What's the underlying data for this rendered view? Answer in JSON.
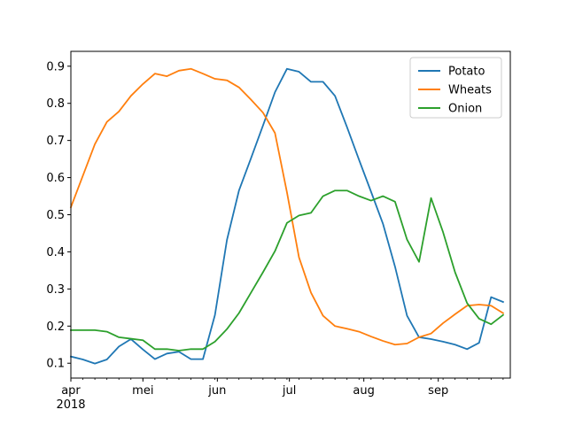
{
  "chart_data": {
    "type": "line",
    "x": [
      "2018-04-01",
      "2018-04-08",
      "2018-04-15",
      "2018-04-22",
      "2018-04-29",
      "2018-05-06",
      "2018-05-13",
      "2018-05-20",
      "2018-05-27",
      "2018-06-03",
      "2018-06-10",
      "2018-06-17",
      "2018-06-24",
      "2018-07-01",
      "2018-07-08",
      "2018-07-15",
      "2018-07-22",
      "2018-07-29",
      "2018-08-05",
      "2018-08-12",
      "2018-08-19",
      "2018-08-26",
      "2018-09-02",
      "2018-09-09",
      "2018-09-16",
      "2018-09-23",
      "2018-09-30"
    ],
    "x_dates": [
      "2018-04-01",
      "2018-04-06",
      "2018-04-11",
      "2018-04-16",
      "2018-04-21",
      "2018-04-26",
      "2018-05-01",
      "2018-05-06",
      "2018-05-11",
      "2018-05-16",
      "2018-05-21",
      "2018-05-26",
      "2018-05-31",
      "2018-06-05",
      "2018-06-10",
      "2018-06-15",
      "2018-06-20",
      "2018-06-25",
      "2018-06-30",
      "2018-07-05",
      "2018-07-10",
      "2018-07-15",
      "2018-07-20",
      "2018-07-25",
      "2018-07-30",
      "2018-08-04",
      "2018-08-09",
      "2018-08-14",
      "2018-08-19",
      "2018-08-24",
      "2018-08-29",
      "2018-09-03",
      "2018-09-08",
      "2018-09-13",
      "2018-09-18",
      "2018-09-23",
      "2018-09-28",
      "2018-10-01"
    ],
    "xlim": [
      "2018-04-01",
      "2018-10-01"
    ],
    "ylim": [
      0.06,
      0.94
    ],
    "yticks": [
      0.1,
      0.2,
      0.3,
      0.4,
      0.5,
      0.6,
      0.7,
      0.8,
      0.9
    ],
    "xtick_labels": [
      {
        "date": "2018-04-01",
        "label": "apr",
        "sublabel": "2018"
      },
      {
        "date": "2018-05-01",
        "label": "mei"
      },
      {
        "date": "2018-06-01",
        "label": "jun"
      },
      {
        "date": "2018-07-01",
        "label": "jul"
      },
      {
        "date": "2018-08-01",
        "label": "aug"
      },
      {
        "date": "2018-09-01",
        "label": "sep"
      }
    ],
    "series": [
      {
        "name": "Potato",
        "color": "#1f77b4",
        "points": [
          [
            "2018-04-01",
            0.118
          ],
          [
            "2018-04-06",
            0.11
          ],
          [
            "2018-04-11",
            0.099
          ],
          [
            "2018-04-16",
            0.11
          ],
          [
            "2018-04-21",
            0.145
          ],
          [
            "2018-04-26",
            0.165
          ],
          [
            "2018-05-01",
            0.137
          ],
          [
            "2018-05-06",
            0.111
          ],
          [
            "2018-05-11",
            0.126
          ],
          [
            "2018-05-16",
            0.131
          ],
          [
            "2018-05-21",
            0.111
          ],
          [
            "2018-05-26",
            0.111
          ],
          [
            "2018-05-31",
            0.23
          ],
          [
            "2018-06-05",
            0.432
          ],
          [
            "2018-06-10",
            0.565
          ],
          [
            "2018-06-15",
            0.652
          ],
          [
            "2018-06-20",
            0.74
          ],
          [
            "2018-06-25",
            0.83
          ],
          [
            "2018-06-30",
            0.893
          ],
          [
            "2018-07-05",
            0.885
          ],
          [
            "2018-07-10",
            0.858
          ],
          [
            "2018-07-15",
            0.858
          ],
          [
            "2018-07-20",
            0.82
          ],
          [
            "2018-07-25",
            0.736
          ],
          [
            "2018-07-30",
            0.648
          ],
          [
            "2018-08-04",
            0.562
          ],
          [
            "2018-08-09",
            0.475
          ],
          [
            "2018-08-14",
            0.36
          ],
          [
            "2018-08-19",
            0.228
          ],
          [
            "2018-08-24",
            0.17
          ],
          [
            "2018-08-29",
            0.165
          ],
          [
            "2018-09-03",
            0.158
          ],
          [
            "2018-09-08",
            0.15
          ],
          [
            "2018-09-13",
            0.138
          ],
          [
            "2018-09-18",
            0.155
          ],
          [
            "2018-09-23",
            0.278
          ],
          [
            "2018-09-28",
            0.265
          ]
        ]
      },
      {
        "name": "Wheats",
        "color": "#ff7f0e",
        "points": [
          [
            "2018-04-01",
            0.52
          ],
          [
            "2018-04-06",
            0.605
          ],
          [
            "2018-04-11",
            0.69
          ],
          [
            "2018-04-16",
            0.75
          ],
          [
            "2018-04-21",
            0.778
          ],
          [
            "2018-04-26",
            0.82
          ],
          [
            "2018-05-01",
            0.852
          ],
          [
            "2018-05-06",
            0.88
          ],
          [
            "2018-05-11",
            0.873
          ],
          [
            "2018-05-16",
            0.888
          ],
          [
            "2018-05-21",
            0.893
          ],
          [
            "2018-05-26",
            0.88
          ],
          [
            "2018-05-31",
            0.866
          ],
          [
            "2018-06-05",
            0.862
          ],
          [
            "2018-06-10",
            0.843
          ],
          [
            "2018-06-15",
            0.81
          ],
          [
            "2018-06-20",
            0.775
          ],
          [
            "2018-06-25",
            0.72
          ],
          [
            "2018-06-30",
            0.56
          ],
          [
            "2018-07-05",
            0.385
          ],
          [
            "2018-07-10",
            0.29
          ],
          [
            "2018-07-15",
            0.228
          ],
          [
            "2018-07-20",
            0.2
          ],
          [
            "2018-07-25",
            0.193
          ],
          [
            "2018-07-30",
            0.185
          ],
          [
            "2018-08-04",
            0.172
          ],
          [
            "2018-08-09",
            0.16
          ],
          [
            "2018-08-14",
            0.15
          ],
          [
            "2018-08-19",
            0.153
          ],
          [
            "2018-08-24",
            0.17
          ],
          [
            "2018-08-29",
            0.18
          ],
          [
            "2018-09-03",
            0.208
          ],
          [
            "2018-09-08",
            0.232
          ],
          [
            "2018-09-13",
            0.255
          ],
          [
            "2018-09-18",
            0.258
          ],
          [
            "2018-09-23",
            0.255
          ],
          [
            "2018-09-28",
            0.235
          ]
        ]
      },
      {
        "name": "Onion",
        "color": "#2ca02c",
        "points": [
          [
            "2018-04-01",
            0.189
          ],
          [
            "2018-04-06",
            0.189
          ],
          [
            "2018-04-11",
            0.189
          ],
          [
            "2018-04-16",
            0.185
          ],
          [
            "2018-04-21",
            0.17
          ],
          [
            "2018-04-26",
            0.166
          ],
          [
            "2018-05-01",
            0.162
          ],
          [
            "2018-05-06",
            0.138
          ],
          [
            "2018-05-11",
            0.138
          ],
          [
            "2018-05-16",
            0.134
          ],
          [
            "2018-05-21",
            0.138
          ],
          [
            "2018-05-26",
            0.138
          ],
          [
            "2018-05-31",
            0.158
          ],
          [
            "2018-06-05",
            0.192
          ],
          [
            "2018-06-10",
            0.235
          ],
          [
            "2018-06-15",
            0.29
          ],
          [
            "2018-06-20",
            0.345
          ],
          [
            "2018-06-25",
            0.402
          ],
          [
            "2018-06-30",
            0.478
          ],
          [
            "2018-07-05",
            0.498
          ],
          [
            "2018-07-10",
            0.505
          ],
          [
            "2018-07-15",
            0.55
          ],
          [
            "2018-07-20",
            0.565
          ],
          [
            "2018-07-25",
            0.565
          ],
          [
            "2018-07-30",
            0.55
          ],
          [
            "2018-08-04",
            0.538
          ],
          [
            "2018-08-09",
            0.55
          ],
          [
            "2018-08-14",
            0.535
          ],
          [
            "2018-08-19",
            0.433
          ],
          [
            "2018-08-24",
            0.373
          ],
          [
            "2018-08-29",
            0.545
          ],
          [
            "2018-09-03",
            0.453
          ],
          [
            "2018-09-08",
            0.345
          ],
          [
            "2018-09-13",
            0.262
          ],
          [
            "2018-09-18",
            0.22
          ],
          [
            "2018-09-23",
            0.205
          ],
          [
            "2018-09-28",
            0.23
          ]
        ]
      }
    ],
    "legend": {
      "placement": "top-right",
      "entries": [
        "Potato",
        "Wheats",
        "Onion"
      ]
    },
    "grid": false,
    "title": "",
    "xlabel": "",
    "ylabel": ""
  }
}
